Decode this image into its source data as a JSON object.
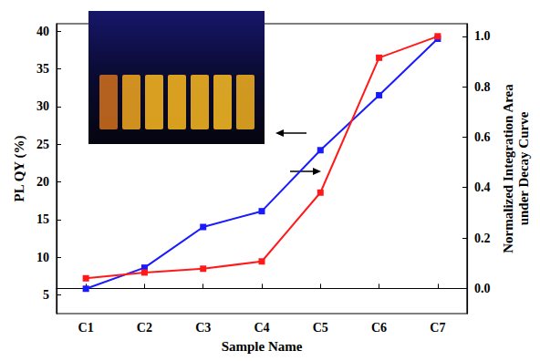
{
  "chart_data": {
    "type": "line",
    "xlabel": "Sample Name",
    "ylabel": "PL QY (%)",
    "y2label": "Normalized Integration Area\nunder Decay Curve",
    "categories": [
      "C1",
      "C2",
      "C3",
      "C4",
      "C5",
      "C6",
      "C7"
    ],
    "series": [
      {
        "color": "#1a1aff",
        "marker": "square",
        "values": [
          5.8,
          8.6,
          14.0,
          16.1,
          24.2,
          31.5,
          39.0
        ]
      },
      {
        "color": "#ff1a1a",
        "marker": "square",
        "axis": "y2",
        "values": [
          0.04,
          0.063,
          0.078,
          0.107,
          0.38,
          0.915,
          1.0
        ]
      }
    ],
    "ylim": [
      2.5,
      41
    ],
    "yticks": [
      5,
      10,
      15,
      20,
      25,
      30,
      35,
      40
    ],
    "y2lim": [
      -0.1,
      1.05
    ],
    "y2ticks": [
      {
        "value": 0,
        "label": "0.0"
      },
      {
        "value": 0.2,
        "label": "0.2"
      },
      {
        "value": 0.4,
        "label": "0.4"
      },
      {
        "value": 0.6,
        "label": "0.6"
      },
      {
        "value": 0.8,
        "label": "0.8"
      },
      {
        "value": 1.0,
        "label": "1.0"
      }
    ],
    "grid": false
  }
}
